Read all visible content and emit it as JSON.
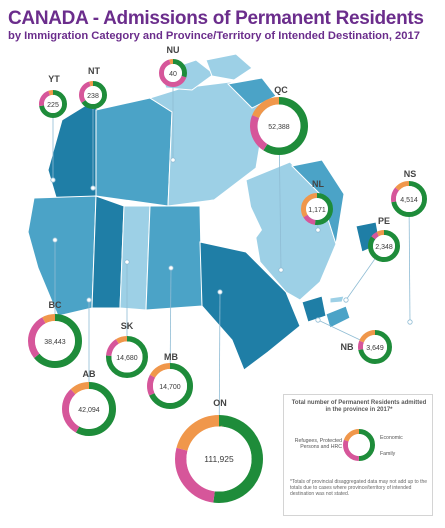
{
  "title": "CANADA - Admissions of Permanent Residents",
  "subtitle": "by Immigration Category and Province/Territory of Intended Destination, 2017",
  "colors": {
    "economic": "#1e8c3a",
    "family": "#d6569a",
    "refugees": "#f0974b",
    "map_dark": "#1f7ea6",
    "map_mid": "#4ba3c7",
    "map_light": "#9dd0e6",
    "title": "#6b2d8c"
  },
  "legend": {
    "title": "Total number of Permanent Residents admitted in the province in 2017*",
    "economic_label": "Economic",
    "family_label": "Family",
    "refugees_label": "Refugees, Protected Persons and HRC",
    "note": "*Totals of provincial disaggregated data may not add up to the totals due to cases where province/territory of intended destination was not stated."
  },
  "chart_data": {
    "type": "pie",
    "categories": [
      "Economic",
      "Family",
      "Refugees, Protected Persons and HRC"
    ],
    "provinces": [
      {
        "code": "YT",
        "total": "225",
        "shares": [
          0.72,
          0.22,
          0.06
        ]
      },
      {
        "code": "NT",
        "total": "238",
        "shares": [
          0.65,
          0.3,
          0.05
        ]
      },
      {
        "code": "NU",
        "total": "40",
        "shares": [
          0.3,
          0.65,
          0.05
        ]
      },
      {
        "code": "QC",
        "total": "52,388",
        "shares": [
          0.59,
          0.22,
          0.19
        ]
      },
      {
        "code": "NL",
        "total": "1,171",
        "shares": [
          0.52,
          0.14,
          0.34
        ]
      },
      {
        "code": "NS",
        "total": "4,514",
        "shares": [
          0.72,
          0.14,
          0.14
        ]
      },
      {
        "code": "PE",
        "total": "2,348",
        "shares": [
          0.85,
          0.07,
          0.08
        ]
      },
      {
        "code": "NB",
        "total": "3,649",
        "shares": [
          0.72,
          0.09,
          0.19
        ]
      },
      {
        "code": "BC",
        "total": "38,443",
        "shares": [
          0.64,
          0.28,
          0.08
        ]
      },
      {
        "code": "AB",
        "total": "42,094",
        "shares": [
          0.58,
          0.3,
          0.12
        ]
      },
      {
        "code": "SK",
        "total": "14,680",
        "shares": [
          0.76,
          0.15,
          0.09
        ]
      },
      {
        "code": "MB",
        "total": "14,700",
        "shares": [
          0.68,
          0.15,
          0.17
        ]
      },
      {
        "code": "ON",
        "total": "111,925",
        "shares": [
          0.52,
          0.27,
          0.21
        ]
      }
    ],
    "legend_example_shares": [
      0.5,
      0.3,
      0.2
    ]
  }
}
